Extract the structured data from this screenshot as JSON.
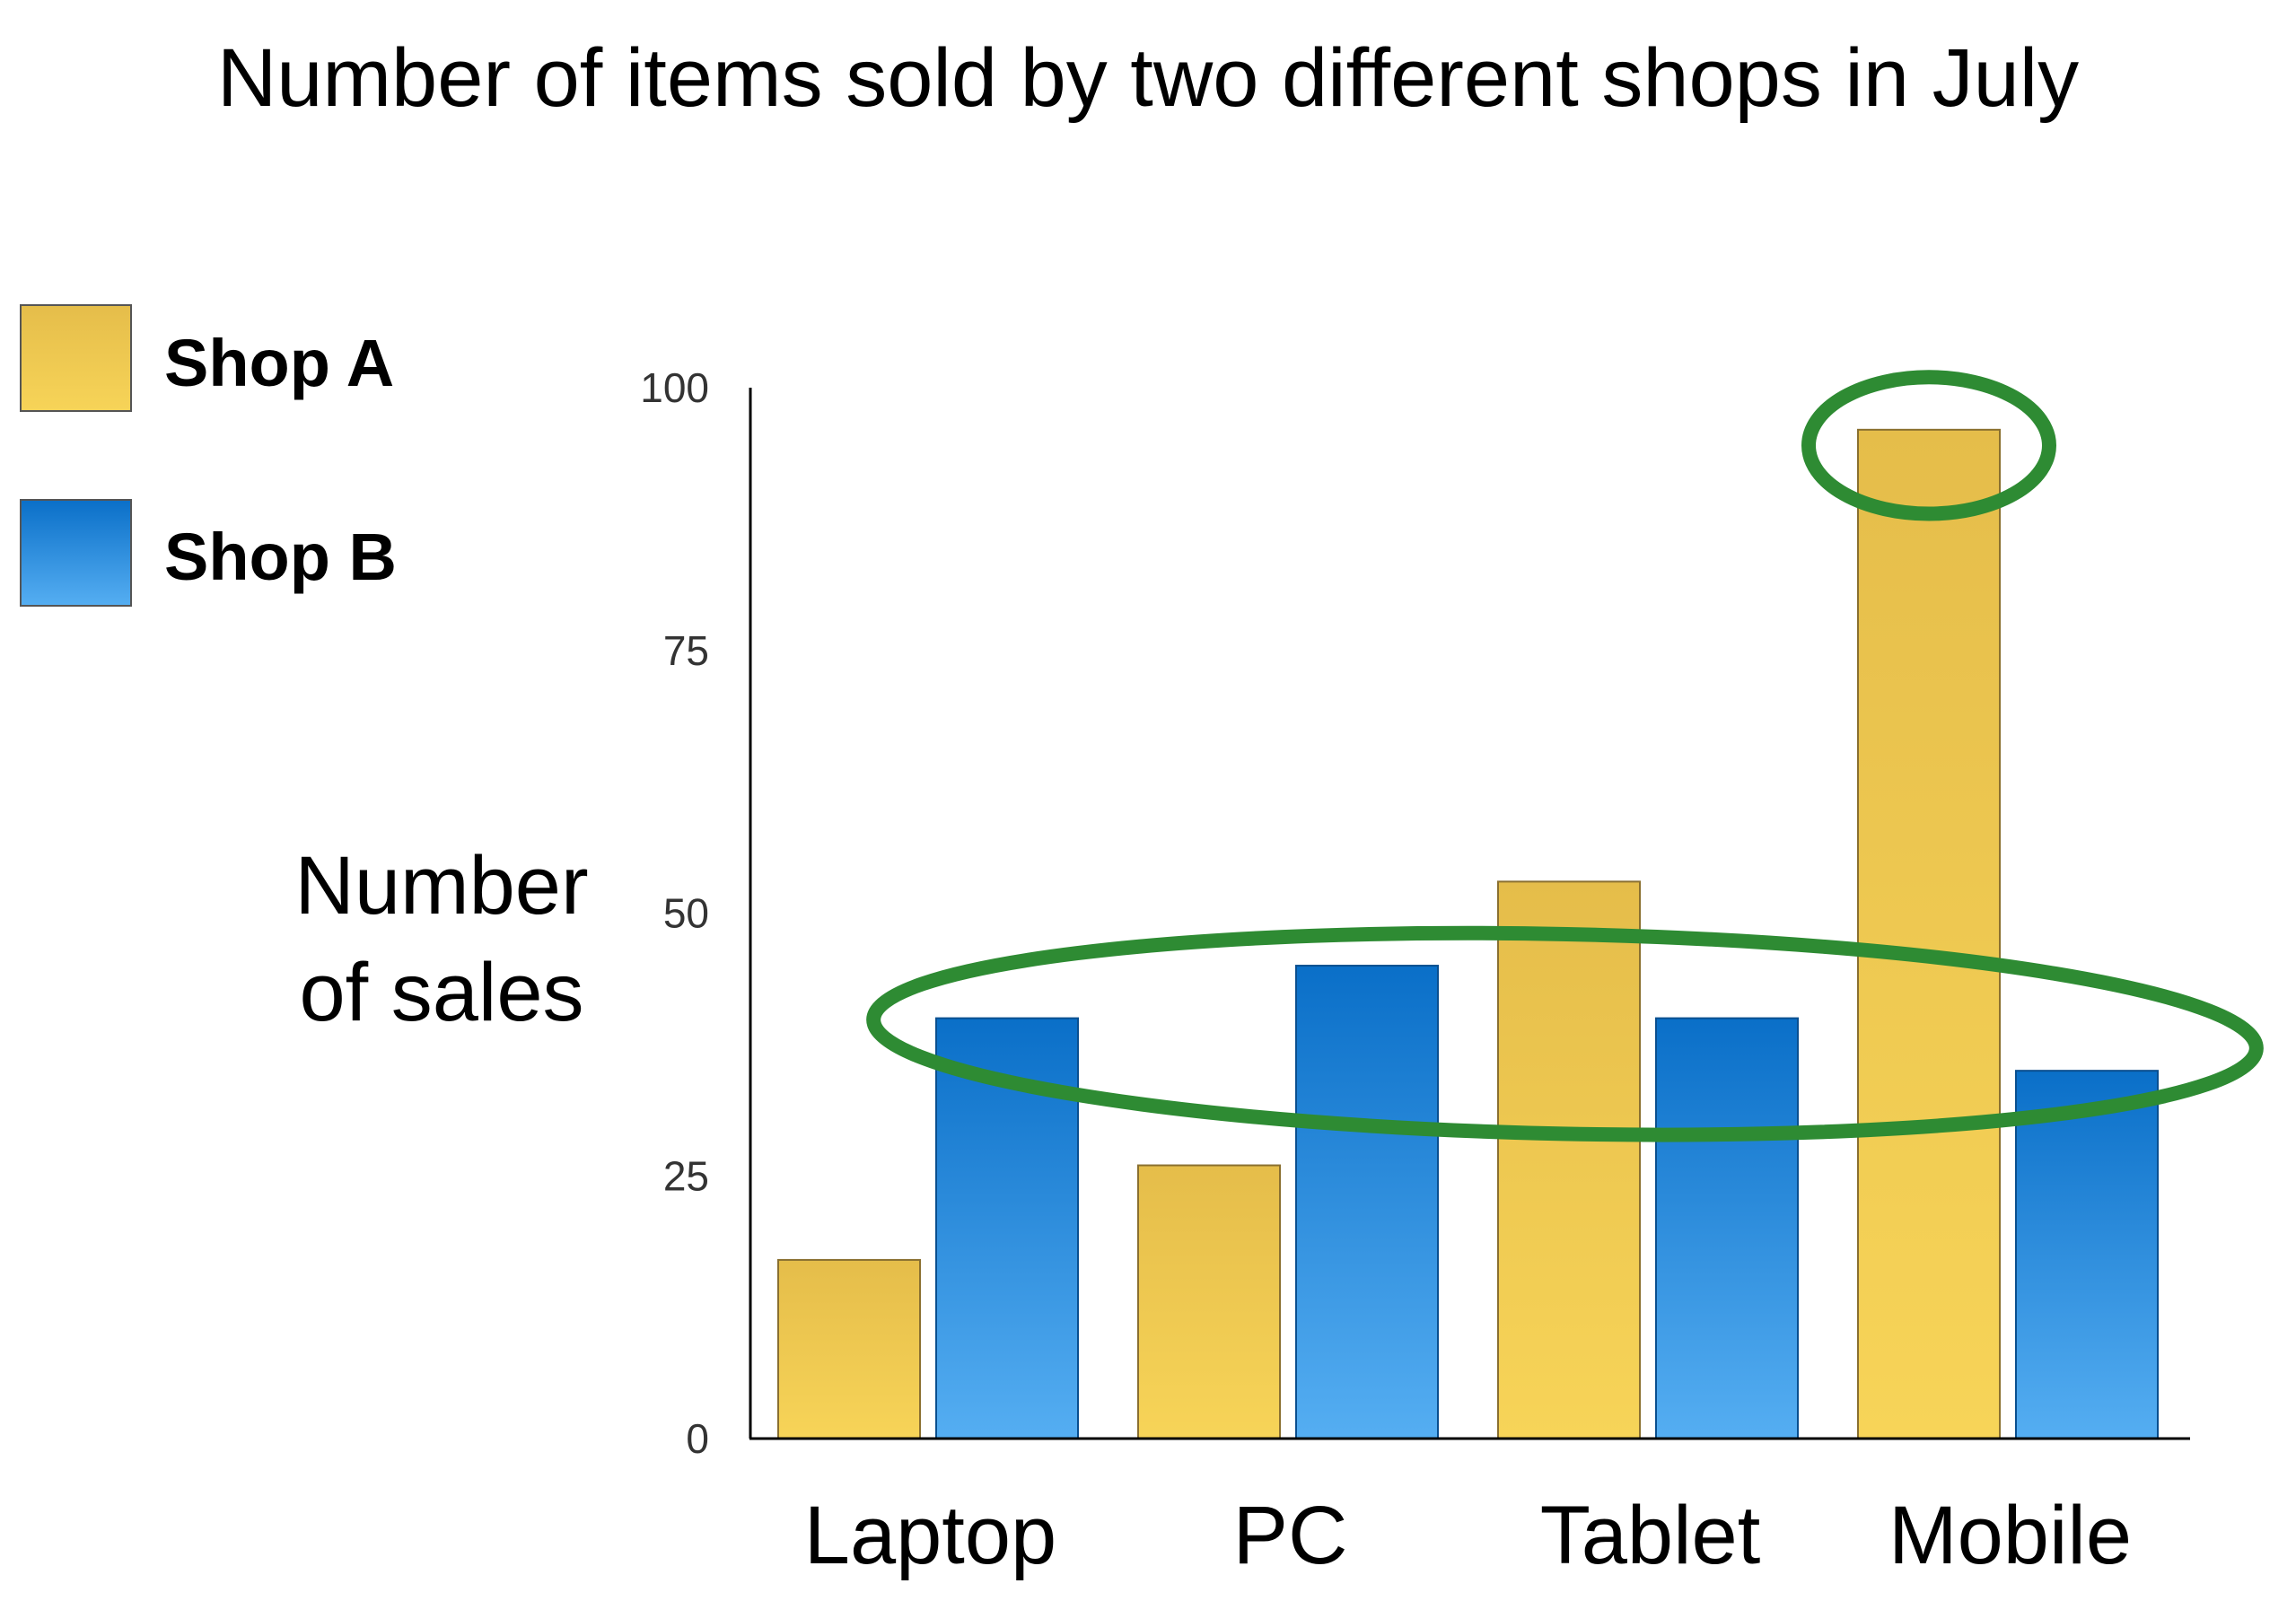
{
  "chart_data": {
    "type": "bar",
    "title": "Number of items sold by two different shops in July",
    "ylabel_lines": [
      "Number",
      "of sales"
    ],
    "xlabel": "",
    "categories": [
      "Laptop",
      "PC",
      "Tablet",
      "Mobile"
    ],
    "series": [
      {
        "name": "Shop A",
        "values": [
          17,
          26,
          53,
          96
        ],
        "color": "#E9C14B"
      },
      {
        "name": "Shop B",
        "values": [
          40,
          45,
          40,
          35
        ],
        "color": "#1E7FD0"
      }
    ],
    "ylim": [
      0,
      100
    ],
    "yticks": [
      "0",
      "25",
      "50",
      "75",
      "100"
    ],
    "grid": false,
    "legend_placement": "top-left",
    "annotations": [
      {
        "kind": "ellipse",
        "color": "#2E8B33",
        "category_from": "Laptop",
        "category_to": "Mobile",
        "series": "Shop B",
        "y_range": [
          29,
          48
        ]
      },
      {
        "kind": "ellipse",
        "color": "#2E8B33",
        "category": "Mobile",
        "series": "Shop A",
        "y_range": [
          88,
          101
        ]
      }
    ]
  }
}
